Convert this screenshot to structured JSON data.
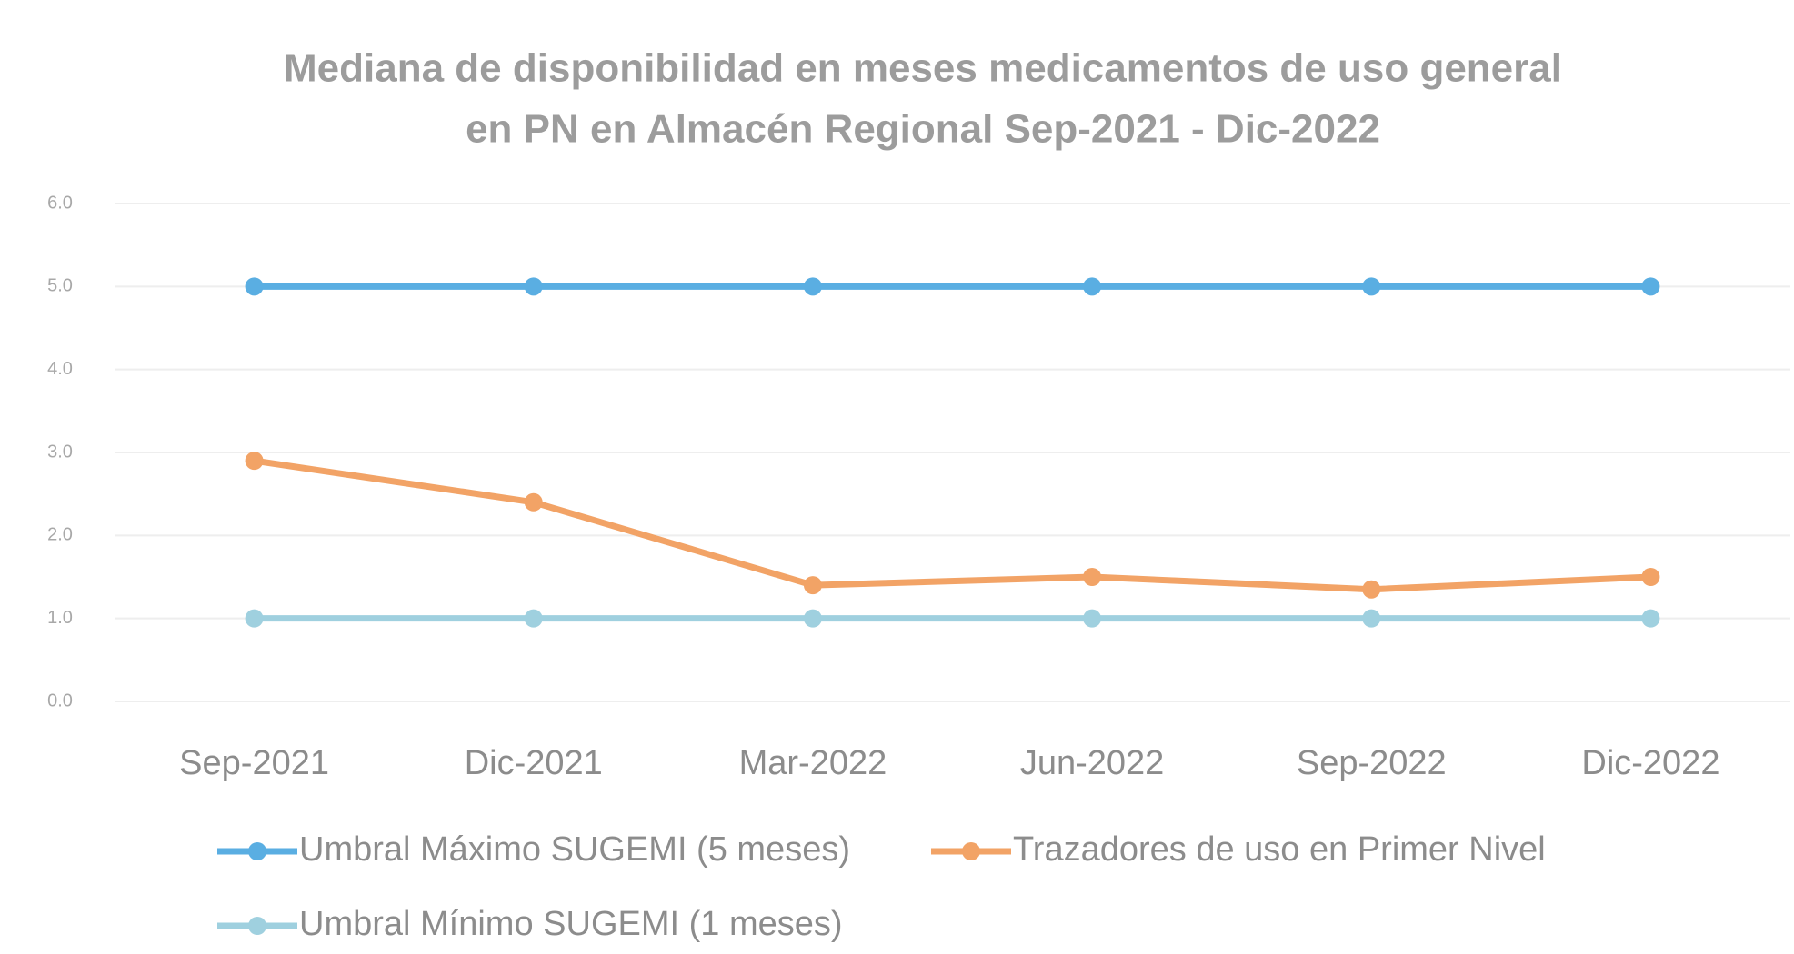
{
  "chart_data": {
    "type": "line",
    "title": [
      "Mediana de disponibilidad en meses medicamentos de uso general",
      "en PN en Almacén Regional  Sep-2021 - Dic-2022"
    ],
    "categories": [
      "Sep-2021",
      "Dic-2021",
      "Mar-2022",
      "Jun-2022",
      "Sep-2022",
      "Dic-2022"
    ],
    "series": [
      {
        "name": "Umbral Máximo SUGEMI (5 meses)",
        "color": "#5aaee2",
        "values": [
          5,
          5,
          5,
          5,
          5,
          5
        ]
      },
      {
        "name": "Trazadores de uso en Primer Nivel",
        "color": "#f2a366",
        "values": [
          2.9,
          2.4,
          1.4,
          1.5,
          1.35,
          1.5
        ]
      },
      {
        "name": "Umbral Mínimo SUGEMI (1 meses)",
        "color": "#9fd0df",
        "values": [
          1,
          1,
          1,
          1,
          1,
          1
        ]
      }
    ],
    "ylim": [
      0,
      6
    ],
    "yticks": [
      {
        "value": 0,
        "label": "0.0"
      },
      {
        "value": 1,
        "label": "1.0"
      },
      {
        "value": 2,
        "label": "2.0"
      },
      {
        "value": 3,
        "label": "3.0"
      },
      {
        "value": 4,
        "label": "4.0"
      },
      {
        "value": 5,
        "label": "5.0"
      },
      {
        "value": 6,
        "label": "6.0"
      }
    ],
    "grid": true,
    "legend": "bottom"
  }
}
